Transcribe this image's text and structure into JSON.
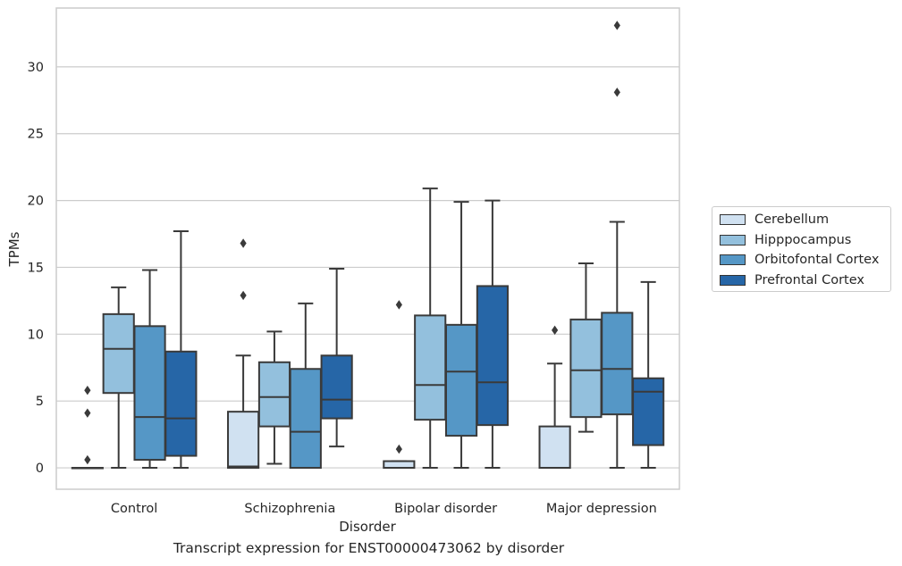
{
  "chart_data": {
    "type": "box",
    "title": "",
    "caption": "Transcript expression for ENST00000473062 by disorder",
    "xlabel": "Disorder",
    "ylabel": "TPMs",
    "ylim": [
      -1.6,
      34.4
    ],
    "yticks": [
      0,
      5,
      10,
      15,
      20,
      25,
      30
    ],
    "grid": "horizontal",
    "legend_position": "right",
    "categories": [
      "Control",
      "Schizophrenia",
      "Bipolar disorder",
      "Major depression"
    ],
    "series": [
      {
        "name": "Cerebellum",
        "color": "#d0e1f1",
        "boxes": [
          {
            "whislo": 0,
            "q1": 0,
            "med": 0,
            "q3": 0,
            "whishi": 0,
            "fliers": [
              0.6,
              4.1,
              5.8
            ]
          },
          {
            "whislo": 0,
            "q1": 0,
            "med": 0.1,
            "q3": 4.2,
            "whishi": 8.4,
            "fliers": [
              12.9,
              16.8
            ]
          },
          {
            "whislo": 0,
            "q1": 0,
            "med": 0,
            "q3": 0.5,
            "whishi": 0.5,
            "fliers": [
              1.4,
              12.2
            ]
          },
          {
            "whislo": 0,
            "q1": 0,
            "med": 0,
            "q3": 3.1,
            "whishi": 7.8,
            "fliers": [
              10.3
            ]
          }
        ]
      },
      {
        "name": "Hipppocampus",
        "color": "#93c0dd",
        "boxes": [
          {
            "whislo": 0,
            "q1": 5.6,
            "med": 8.9,
            "q3": 11.5,
            "whishi": 13.5,
            "fliers": []
          },
          {
            "whislo": 0.3,
            "q1": 3.1,
            "med": 5.3,
            "q3": 7.9,
            "whishi": 10.2,
            "fliers": []
          },
          {
            "whislo": 0,
            "q1": 3.6,
            "med": 6.2,
            "q3": 11.4,
            "whishi": 20.9,
            "fliers": []
          },
          {
            "whislo": 2.7,
            "q1": 3.8,
            "med": 7.3,
            "q3": 11.1,
            "whishi": 15.3,
            "fliers": []
          }
        ]
      },
      {
        "name": "Orbitofontal Cortex",
        "color": "#5597c6",
        "boxes": [
          {
            "whislo": 0,
            "q1": 0.6,
            "med": 3.8,
            "q3": 10.6,
            "whishi": 14.8,
            "fliers": []
          },
          {
            "whislo": 0,
            "q1": 0,
            "med": 2.7,
            "q3": 7.4,
            "whishi": 12.3,
            "fliers": []
          },
          {
            "whislo": 0,
            "q1": 2.4,
            "med": 7.2,
            "q3": 10.7,
            "whishi": 19.9,
            "fliers": []
          },
          {
            "whislo": 0,
            "q1": 4.0,
            "med": 7.4,
            "q3": 11.6,
            "whishi": 18.4,
            "fliers": [
              28.1,
              33.1
            ]
          }
        ]
      },
      {
        "name": "Prefrontal Cortex",
        "color": "#2666a7",
        "boxes": [
          {
            "whislo": 0,
            "q1": 0.9,
            "med": 3.7,
            "q3": 8.7,
            "whishi": 17.7,
            "fliers": []
          },
          {
            "whislo": 1.6,
            "q1": 3.7,
            "med": 5.1,
            "q3": 8.4,
            "whishi": 14.9,
            "fliers": []
          },
          {
            "whislo": 0,
            "q1": 3.2,
            "med": 6.4,
            "q3": 13.6,
            "whishi": 20.0,
            "fliers": []
          },
          {
            "whislo": 0,
            "q1": 1.7,
            "med": 5.7,
            "q3": 6.7,
            "whishi": 13.9,
            "fliers": []
          }
        ]
      }
    ]
  }
}
